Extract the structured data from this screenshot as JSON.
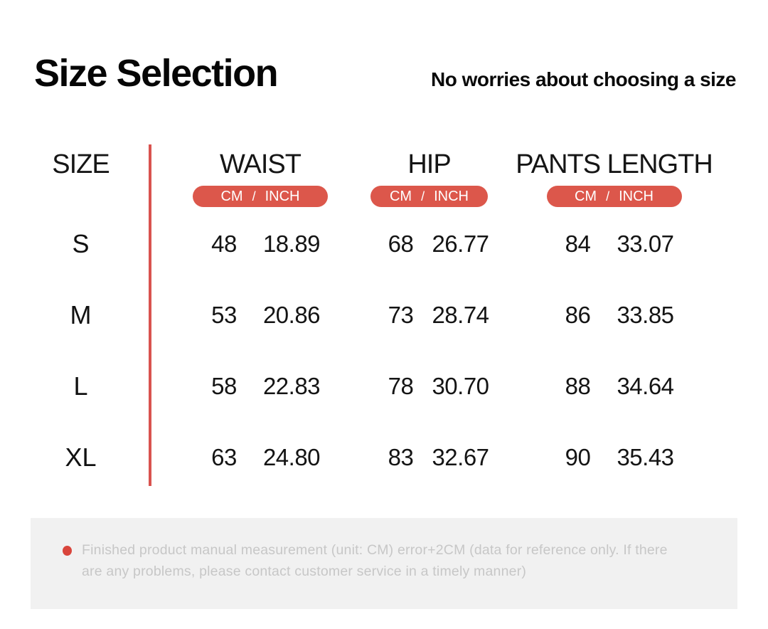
{
  "page": {
    "title": "Size Selection",
    "subtitle": "No worries about choosing a size"
  },
  "table": {
    "size_header": "SIZE",
    "unit_cm": "CM",
    "unit_sep": "/",
    "unit_inch": "INCH",
    "columns": [
      {
        "label": "WAIST"
      },
      {
        "label": "HIP"
      },
      {
        "label": "PANTS LENGTH"
      }
    ],
    "rows": [
      {
        "size": "S",
        "waist_cm": "48",
        "waist_inch": "18.89",
        "hip_cm": "68",
        "hip_inch": "26.77",
        "pants_cm": "84",
        "pants_inch": "33.07"
      },
      {
        "size": "M",
        "waist_cm": "53",
        "waist_inch": "20.86",
        "hip_cm": "73",
        "hip_inch": "28.74",
        "pants_cm": "86",
        "pants_inch": "33.85"
      },
      {
        "size": "L",
        "waist_cm": "58",
        "waist_inch": "22.83",
        "hip_cm": "78",
        "hip_inch": "30.70",
        "pants_cm": "88",
        "pants_inch": "34.64"
      },
      {
        "size": "XL",
        "waist_cm": "63",
        "waist_inch": "24.80",
        "hip_cm": "83",
        "hip_inch": "32.67",
        "pants_cm": "90",
        "pants_inch": "35.43"
      }
    ]
  },
  "footnote": {
    "text": "Finished product manual measurement (unit: CM) error+2CM (data for reference only. If there are any problems, please contact customer service in a timely manner)"
  },
  "colors": {
    "accent_red": "#dc574b",
    "divider_red": "#d9534f",
    "bullet_red": "#d9453c",
    "footnote_bg": "#f1f1f1",
    "footnote_text": "#c7c7c7"
  },
  "chart_data": {
    "type": "table",
    "title": "Size Selection",
    "subtitle": "No worries about choosing a size",
    "unit_note": "CM / INCH",
    "columns": [
      "SIZE",
      "WAIST CM",
      "WAIST INCH",
      "HIP CM",
      "HIP INCH",
      "PANTS LENGTH CM",
      "PANTS LENGTH INCH"
    ],
    "rows": [
      [
        "S",
        48,
        18.89,
        68,
        26.77,
        84,
        33.07
      ],
      [
        "M",
        53,
        20.86,
        73,
        28.74,
        86,
        33.85
      ],
      [
        "L",
        58,
        22.83,
        78,
        30.7,
        88,
        34.64
      ],
      [
        "XL",
        63,
        24.8,
        83,
        32.67,
        90,
        35.43
      ]
    ]
  }
}
